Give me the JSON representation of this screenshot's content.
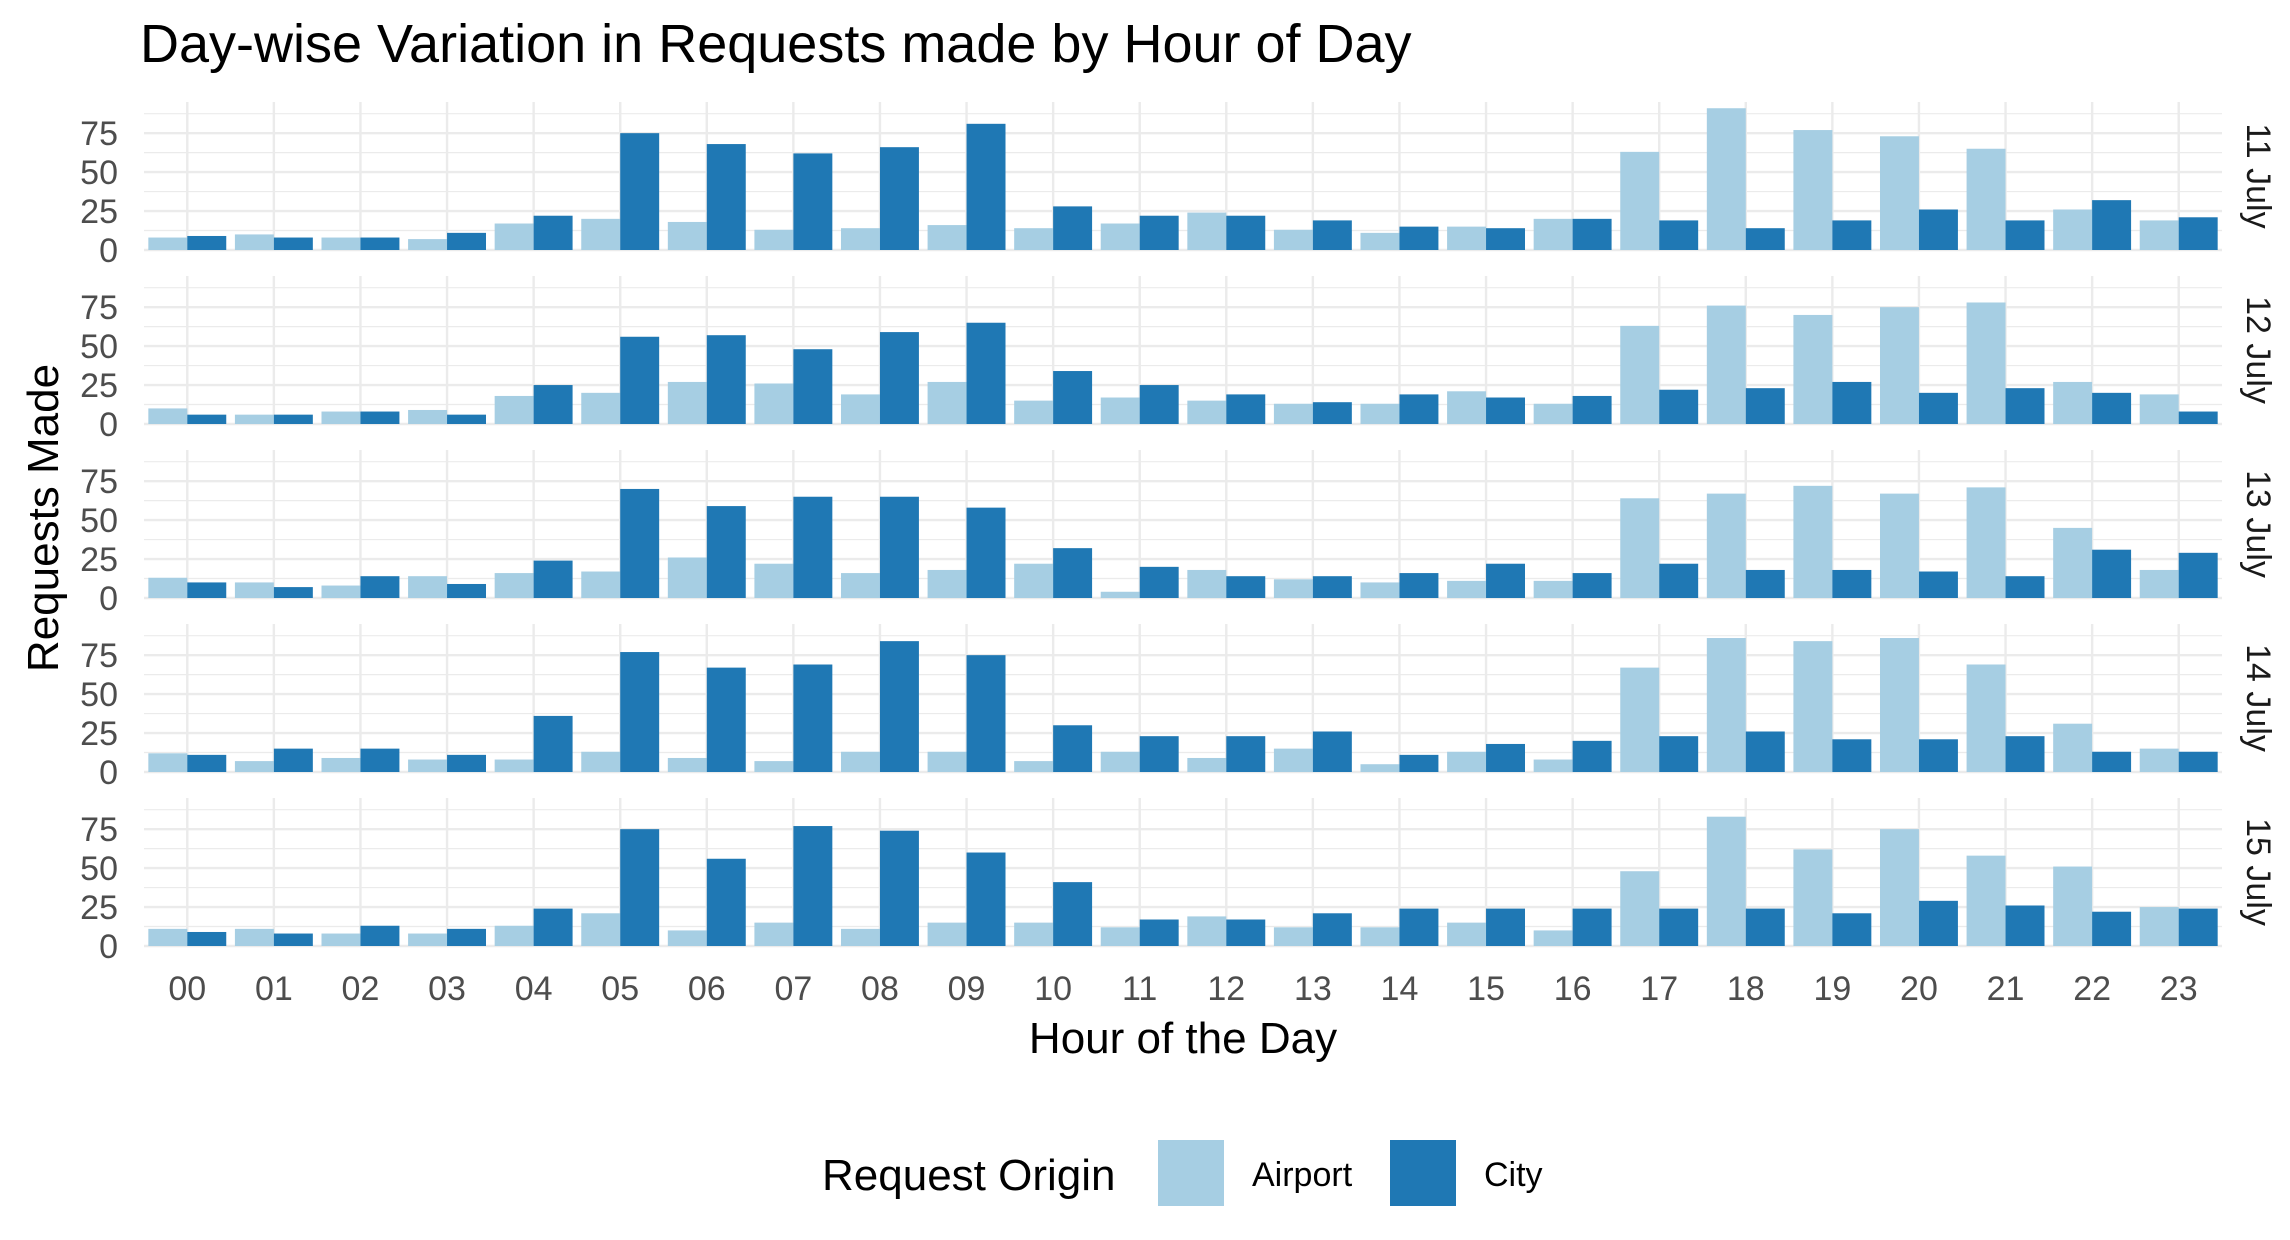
{
  "chart_data": {
    "type": "bar",
    "title": "Day-wise Variation in Requests made by Hour of Day",
    "xlabel": "Hour of the Day",
    "ylabel": "Requests Made",
    "categories": [
      "00",
      "01",
      "02",
      "03",
      "04",
      "05",
      "06",
      "07",
      "08",
      "09",
      "10",
      "11",
      "12",
      "13",
      "14",
      "15",
      "16",
      "17",
      "18",
      "19",
      "20",
      "21",
      "22",
      "23"
    ],
    "yticks": [
      "0",
      "25",
      "50",
      "75"
    ],
    "ylim": [
      0,
      95
    ],
    "grid": true,
    "legend": {
      "title": "Request Origin",
      "position": "bottom",
      "entries": [
        {
          "name": "Airport",
          "color": "#a6cee3"
        },
        {
          "name": "City",
          "color": "#1f78b4"
        }
      ]
    },
    "facets": [
      {
        "label": "11 July",
        "series": [
          {
            "name": "Airport",
            "values": [
              8,
              10,
              8,
              7,
              17,
              20,
              18,
              13,
              14,
              16,
              14,
              17,
              24,
              13,
              11,
              15,
              20,
              63,
              91,
              77,
              73,
              65,
              26,
              19
            ]
          },
          {
            "name": "City",
            "values": [
              9,
              8,
              8,
              11,
              22,
              75,
              68,
              62,
              66,
              81,
              28,
              22,
              22,
              19,
              15,
              14,
              20,
              19,
              14,
              19,
              26,
              19,
              32,
              21
            ]
          }
        ]
      },
      {
        "label": "12 July",
        "series": [
          {
            "name": "Airport",
            "values": [
              10,
              6,
              8,
              9,
              18,
              20,
              27,
              26,
              19,
              27,
              15,
              17,
              15,
              13,
              13,
              21,
              13,
              63,
              76,
              70,
              75,
              78,
              27,
              19
            ]
          },
          {
            "name": "City",
            "values": [
              6,
              6,
              8,
              6,
              25,
              56,
              57,
              48,
              59,
              65,
              34,
              25,
              19,
              14,
              19,
              17,
              18,
              22,
              23,
              27,
              20,
              23,
              20,
              8
            ]
          }
        ]
      },
      {
        "label": "13 July",
        "series": [
          {
            "name": "Airport",
            "values": [
              13,
              10,
              8,
              14,
              16,
              17,
              26,
              22,
              16,
              18,
              22,
              4,
              18,
              12,
              10,
              11,
              11,
              64,
              67,
              72,
              67,
              71,
              45,
              18
            ]
          },
          {
            "name": "City",
            "values": [
              10,
              7,
              14,
              9,
              24,
              70,
              59,
              65,
              65,
              58,
              32,
              20,
              14,
              14,
              16,
              22,
              16,
              22,
              18,
              18,
              17,
              14,
              31,
              29
            ]
          }
        ]
      },
      {
        "label": "14 July",
        "series": [
          {
            "name": "Airport",
            "values": [
              12,
              7,
              9,
              8,
              8,
              13,
              9,
              7,
              13,
              13,
              7,
              13,
              9,
              15,
              5,
              13,
              8,
              67,
              86,
              84,
              86,
              69,
              31,
              15
            ]
          },
          {
            "name": "City",
            "values": [
              11,
              15,
              15,
              11,
              36,
              77,
              67,
              69,
              84,
              75,
              30,
              23,
              23,
              26,
              11,
              18,
              20,
              23,
              26,
              21,
              21,
              23,
              13,
              13
            ]
          }
        ]
      },
      {
        "label": "15 July",
        "series": [
          {
            "name": "Airport",
            "values": [
              11,
              11,
              8,
              8,
              13,
              21,
              10,
              15,
              11,
              15,
              15,
              12,
              19,
              12,
              12,
              15,
              10,
              48,
              83,
              62,
              75,
              58,
              51,
              25
            ]
          },
          {
            "name": "City",
            "values": [
              9,
              8,
              13,
              11,
              24,
              75,
              56,
              77,
              74,
              60,
              41,
              17,
              17,
              21,
              24,
              24,
              24,
              24,
              24,
              21,
              29,
              26,
              22,
              24
            ]
          }
        ]
      }
    ]
  }
}
